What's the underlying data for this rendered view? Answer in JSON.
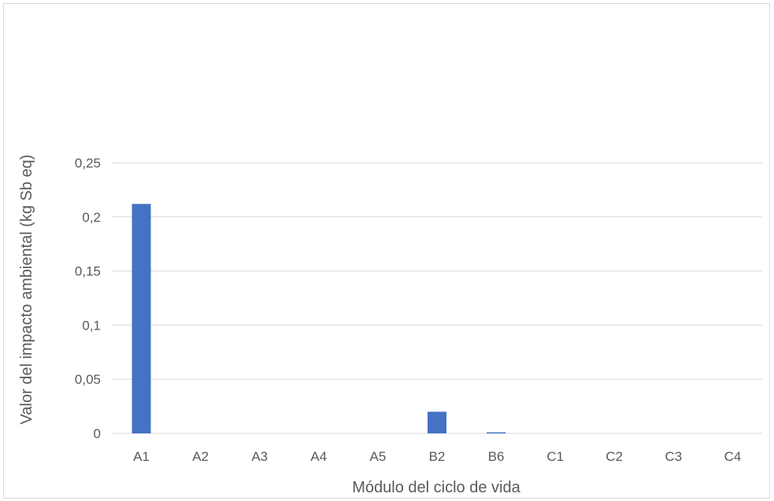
{
  "chart_data": {
    "type": "bar",
    "categories": [
      "A1",
      "A2",
      "A3",
      "A4",
      "A5",
      "B2",
      "B6",
      "C1",
      "C2",
      "C3",
      "C4"
    ],
    "series": [
      {
        "values": [
          0.212,
          0,
          0,
          0,
          0,
          0.02,
          0.001,
          0,
          0,
          0,
          0
        ]
      }
    ],
    "xlabel": "Módulo del ciclo de vida",
    "ylabel": "Valor del impacto ambiental (kg Sb eq)",
    "ylim": [
      0,
      0.25
    ],
    "yticks": [
      "0",
      "0,05",
      "0,1",
      "0,15",
      "0,2",
      "0,25"
    ],
    "grid": true,
    "legend": "none",
    "bar_color": "#4472c4",
    "gridline_color": "#d9d9d9"
  }
}
